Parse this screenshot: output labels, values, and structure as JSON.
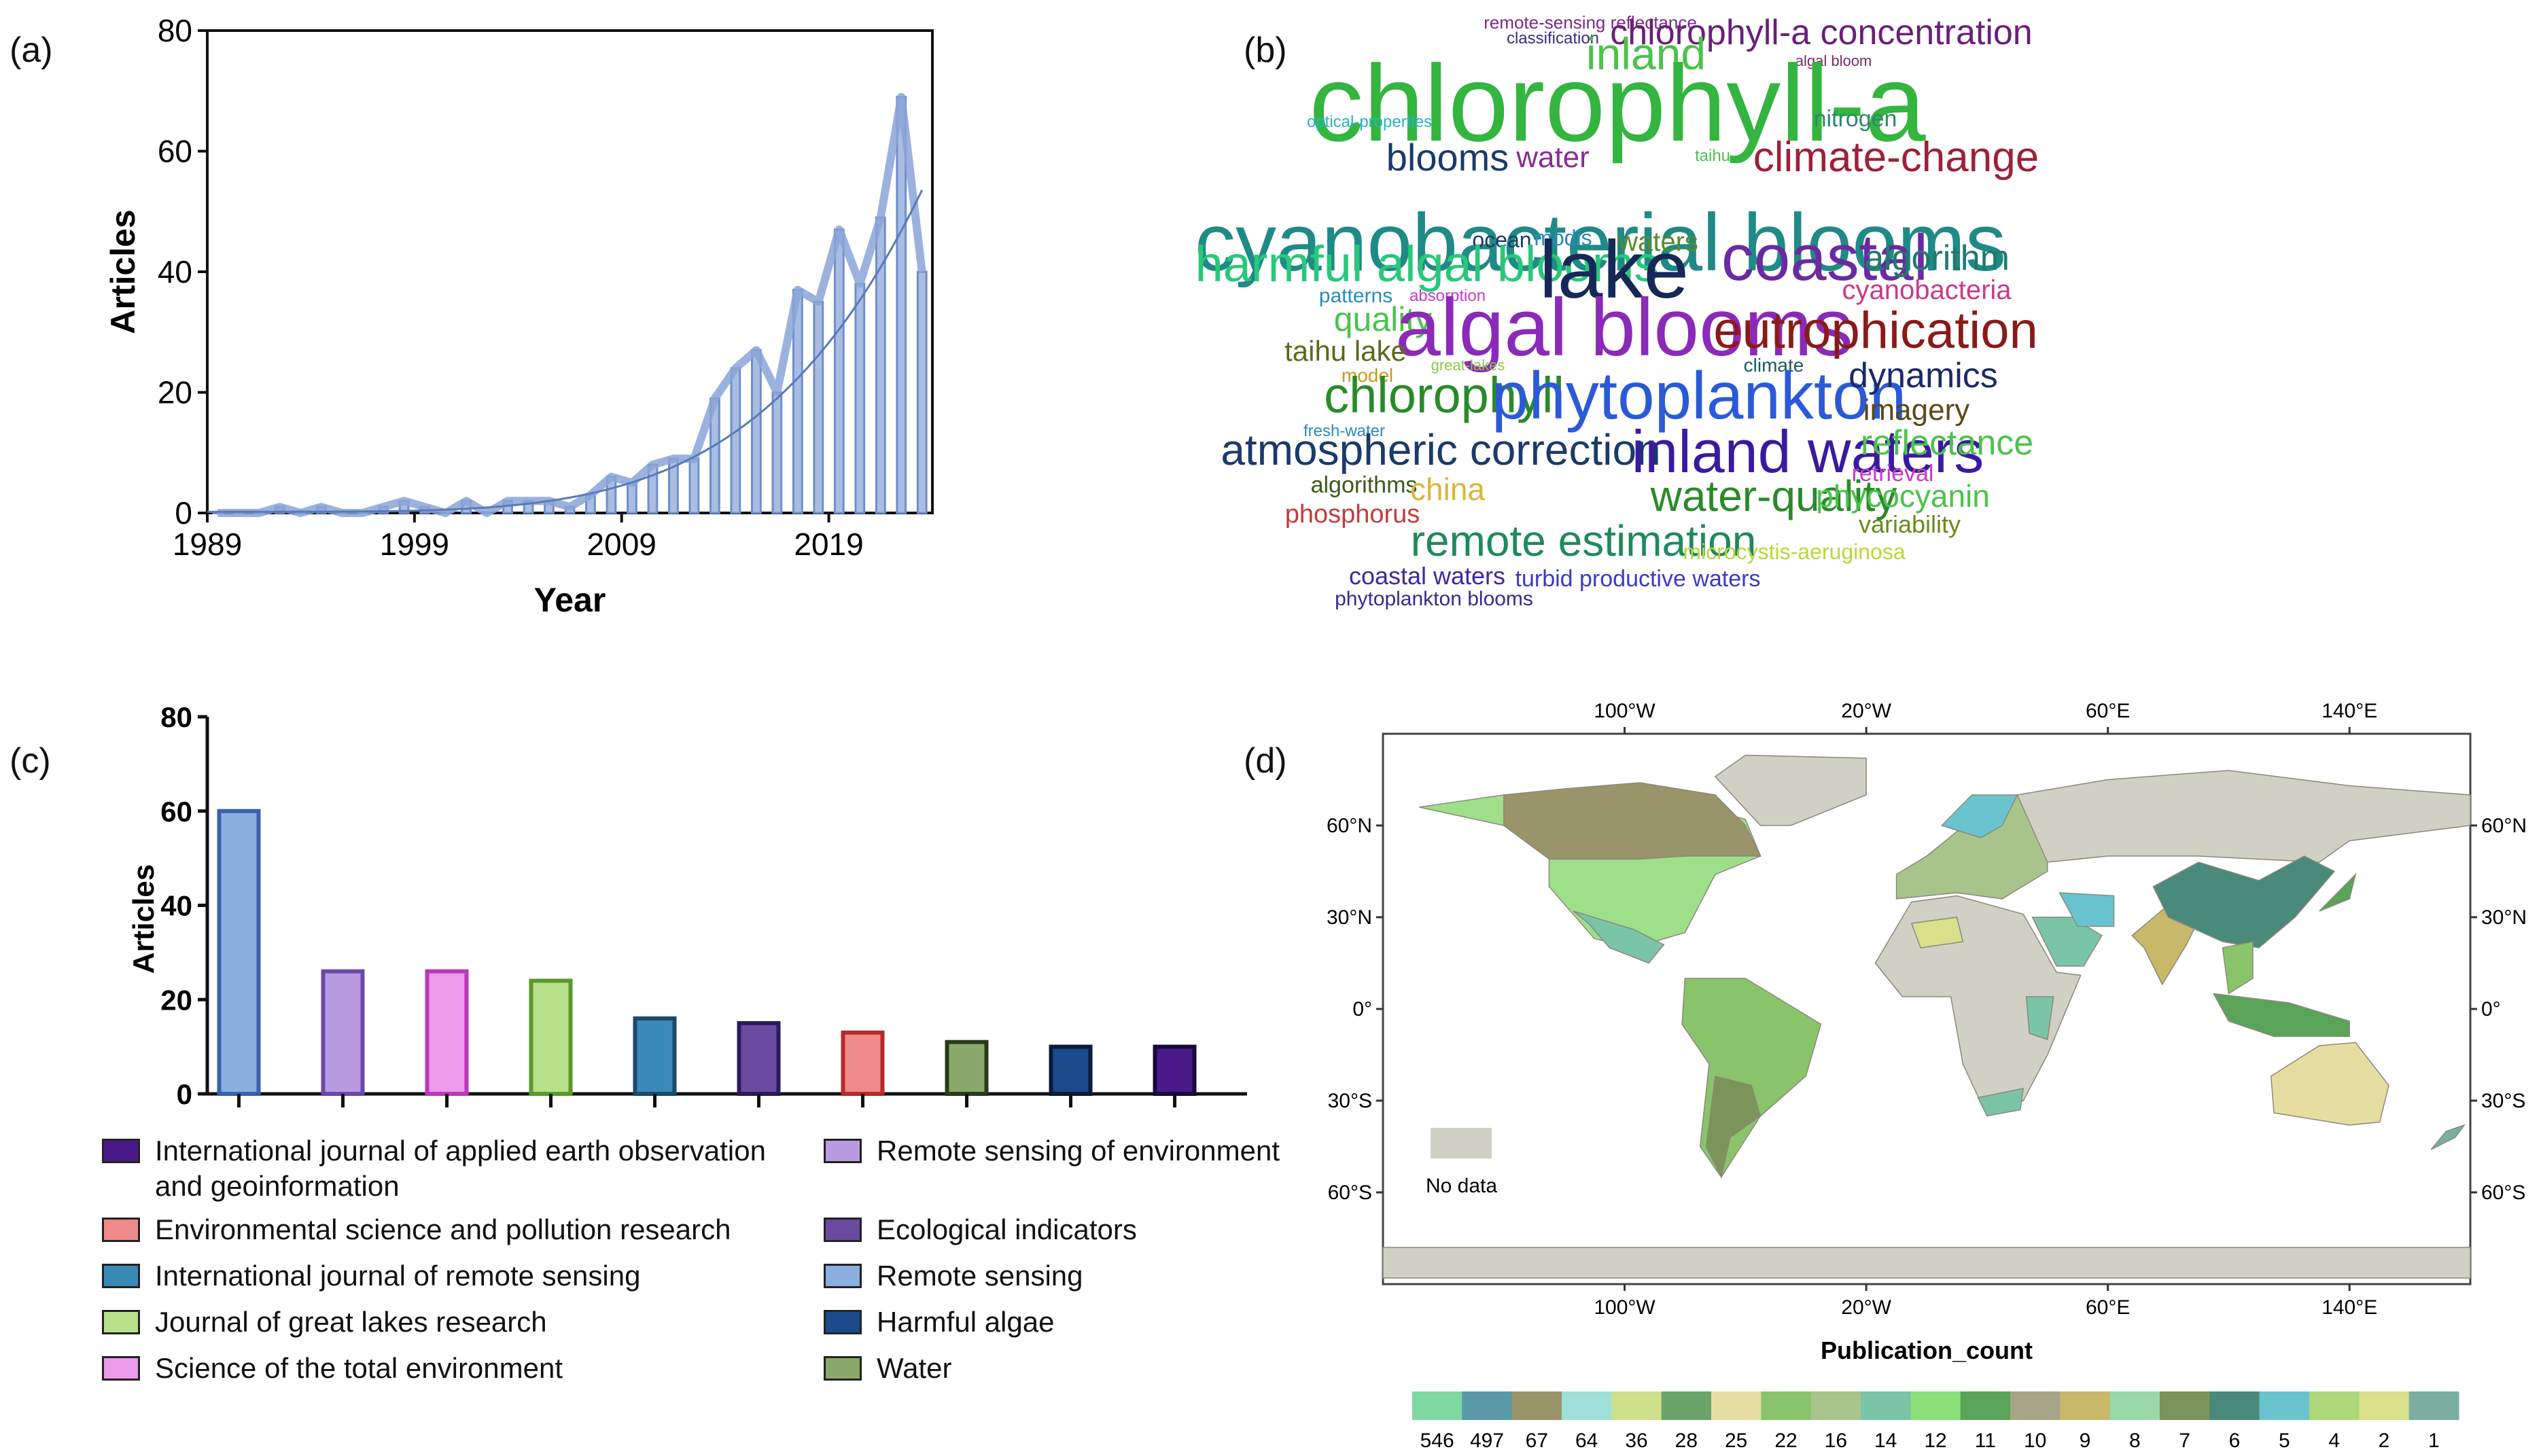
{
  "panels": {
    "a": "(a)",
    "b": "(b)",
    "c": "(c)",
    "d": "(d)"
  },
  "chart_data": [
    {
      "type": "bar",
      "xlabel": "Year",
      "ylabel": "Articles",
      "x_ticks": [
        "1989",
        "1999",
        "2009",
        "2019"
      ],
      "y_ticks": [
        "0",
        "20",
        "40",
        "60",
        "80"
      ],
      "ylim": [
        0,
        80
      ],
      "xlim": [
        1989,
        2024
      ],
      "years": [
        1989,
        1990,
        1991,
        1992,
        1993,
        1994,
        1995,
        1996,
        1997,
        1998,
        1999,
        2000,
        2001,
        2002,
        2003,
        2004,
        2005,
        2006,
        2007,
        2008,
        2009,
        2010,
        2011,
        2012,
        2013,
        2014,
        2015,
        2016,
        2017,
        2018,
        2019,
        2020,
        2021,
        2022,
        2023
      ],
      "values": [
        0,
        0,
        0,
        1,
        0,
        1,
        0,
        0,
        1,
        2,
        1,
        0,
        2,
        0,
        2,
        2,
        2,
        1,
        3,
        6,
        5,
        8,
        9,
        9,
        19,
        24,
        27,
        20,
        37,
        35,
        47,
        38,
        49,
        69,
        40
      ],
      "trend": "exponential"
    },
    {
      "type": "wordcloud",
      "words": [
        {
          "text": "remote-sensing reflectance",
          "color": "#7b2a8a",
          "size": 26
        },
        {
          "text": "classification",
          "color": "#3a2a8a",
          "size": 24
        },
        {
          "text": "chlorophyll-a concentration",
          "color": "#6a1f7a",
          "size": 52
        },
        {
          "text": "inland",
          "color": "#4cc24c",
          "size": 66
        },
        {
          "text": "algal bloom",
          "color": "#7b2a6a",
          "size": 22
        },
        {
          "text": "chlorophyll-a",
          "color": "#33b53f",
          "size": 160
        },
        {
          "text": "optical-properties",
          "color": "#26b4c8",
          "size": 24
        },
        {
          "text": "nitrogen",
          "color": "#2a8a6a",
          "size": 34
        },
        {
          "text": "blooms",
          "color": "#1a3a6a",
          "size": 56
        },
        {
          "text": "water",
          "color": "#8a2a9a",
          "size": 44
        },
        {
          "text": "taihu",
          "color": "#4cc24c",
          "size": 24
        },
        {
          "text": "climate-change",
          "color": "#9e2038",
          "size": 62
        },
        {
          "text": "cyanobacterial blooms",
          "color": "#1f8a86",
          "size": 120
        },
        {
          "text": "ocean",
          "color": "#1a3a6a",
          "size": 32
        },
        {
          "text": "modis",
          "color": "#2a8abe",
          "size": 32
        },
        {
          "text": "waters",
          "color": "#5a8a2a",
          "size": 40
        },
        {
          "text": "harmful algal blooms",
          "color": "#27c87a",
          "size": 74
        },
        {
          "text": "lake",
          "color": "#162858",
          "size": 120
        },
        {
          "text": "coastal",
          "color": "#6a2aa0",
          "size": 96
        },
        {
          "text": "algorithm",
          "color": "#1f7a6e",
          "size": 52
        },
        {
          "text": "patterns",
          "color": "#2a8abe",
          "size": 30
        },
        {
          "text": "absorption",
          "color": "#c83ac8",
          "size": 24
        },
        {
          "text": "cyanobacteria",
          "color": "#c83a8a",
          "size": 40
        },
        {
          "text": "quality",
          "color": "#4cc24c",
          "size": 50
        },
        {
          "text": "algal blooms",
          "color": "#8a2ab8",
          "size": 120
        },
        {
          "text": "eutrophication",
          "color": "#8a1a1a",
          "size": 76
        },
        {
          "text": "taihu lake",
          "color": "#5a6a1a",
          "size": 42
        },
        {
          "text": "model",
          "color": "#c89a1a",
          "size": 28
        },
        {
          "text": "great-lakes",
          "color": "#8ac84a",
          "size": 22
        },
        {
          "text": "climate",
          "color": "#1a5a5a",
          "size": 28
        },
        {
          "text": "chlorophyll",
          "color": "#2a8a2a",
          "size": 74
        },
        {
          "text": "phytoplankton",
          "color": "#2a5ad8",
          "size": 98
        },
        {
          "text": "dynamics",
          "color": "#1a2a6a",
          "size": 52
        },
        {
          "text": "imagery",
          "color": "#5a4a1a",
          "size": 44
        },
        {
          "text": "fresh-water",
          "color": "#2a8abe",
          "size": 24
        },
        {
          "text": "atmospheric correction",
          "color": "#1a3a6a",
          "size": 64
        },
        {
          "text": "inland waters",
          "color": "#3a1aa0",
          "size": 88
        },
        {
          "text": "reflectance",
          "color": "#4cc24c",
          "size": 52
        },
        {
          "text": "retrieval",
          "color": "#c83ac8",
          "size": 34
        },
        {
          "text": "algorithms",
          "color": "#3a5a1a",
          "size": 34
        },
        {
          "text": "china",
          "color": "#d8b83a",
          "size": 46
        },
        {
          "text": "water-quality",
          "color": "#2a8a2a",
          "size": 64
        },
        {
          "text": "phycocyanin",
          "color": "#4cc24c",
          "size": 46
        },
        {
          "text": "phosphorus",
          "color": "#c83a3a",
          "size": 38
        },
        {
          "text": "variability",
          "color": "#6a8a1a",
          "size": 36
        },
        {
          "text": "remote estimation",
          "color": "#1f8a5a",
          "size": 64
        },
        {
          "text": "microcystis-aeruginosa",
          "color": "#b8d83a",
          "size": 32
        },
        {
          "text": "coastal waters",
          "color": "#3a2aa0",
          "size": 36
        },
        {
          "text": "turbid productive waters",
          "color": "#3a3ac8",
          "size": 34
        },
        {
          "text": "phytoplankton blooms",
          "color": "#3a2a8a",
          "size": 30
        }
      ]
    },
    {
      "type": "bar",
      "ylabel": "Articles",
      "y_ticks": [
        "0",
        "20",
        "40",
        "60",
        "80"
      ],
      "ylim": [
        0,
        80
      ],
      "categories": [
        "Remote sensing",
        "Remote sensing of environment",
        "Science of the total environment",
        "Journal of great lakes research",
        "International journal of remote sensing",
        "Ecological indicators",
        "Environmental science and pollution research",
        "Water",
        "Harmful algae",
        "International journal of applied earth observation and geoinformation"
      ],
      "values": [
        60,
        26,
        26,
        24,
        16,
        15,
        13,
        11,
        10,
        10
      ],
      "colors": [
        {
          "fill": "#8aaede",
          "stroke": "#3a62a8"
        },
        {
          "fill": "#b89ae0",
          "stroke": "#6a4aa8"
        },
        {
          "fill": "#ec9aec",
          "stroke": "#b83ab8"
        },
        {
          "fill": "#b8e08a",
          "stroke": "#5a9a2a"
        },
        {
          "fill": "#3a8ab8",
          "stroke": "#1a4a6a"
        },
        {
          "fill": "#6a4aa0",
          "stroke": "#2a1a5a"
        },
        {
          "fill": "#ee8a8a",
          "stroke": "#b82a2a"
        },
        {
          "fill": "#8aa86a",
          "stroke": "#2a3a1a"
        },
        {
          "fill": "#1a4a8a",
          "stroke": "#0a1a3a"
        },
        {
          "fill": "#4a1a8a",
          "stroke": "#1a0a3a"
        }
      ],
      "legend": [
        {
          "label": "International journal of applied earth observation and geoinformation",
          "color": "#4a1a8a"
        },
        {
          "label": "Environmental science and pollution research",
          "color": "#ee8a8a"
        },
        {
          "label": "International journal of remote sensing",
          "color": "#3a8ab8"
        },
        {
          "label": "Journal of great lakes research",
          "color": "#b8e08a"
        },
        {
          "label": "Science of the total environment",
          "color": "#ec9aec"
        },
        {
          "label": "Remote sensing of environment",
          "color": "#b89ae0"
        },
        {
          "label": "Ecological indicators",
          "color": "#6a4aa0"
        },
        {
          "label": "Remote sensing",
          "color": "#8aaede"
        },
        {
          "label": "Harmful algae",
          "color": "#1a4a8a"
        },
        {
          "label": "Water",
          "color": "#8aa86a"
        }
      ]
    },
    {
      "type": "map",
      "top_ticks": [
        "100°W",
        "20°W",
        "60°E",
        "140°E"
      ],
      "bottom_ticks": [
        "100°W",
        "20°W",
        "60°E",
        "140°E"
      ],
      "lat_ticks": [
        "60°N",
        "30°N",
        "0°",
        "30°S",
        "60°S"
      ],
      "no_data_label": "No data",
      "no_data_color": "#d0d0c4",
      "legend_title": "Publication_count",
      "bins": [
        {
          "label": "546",
          "color": "#7fd8a0"
        },
        {
          "label": "497",
          "color": "#5a9aa8"
        },
        {
          "label": "67",
          "color": "#9a946a"
        },
        {
          "label": "64",
          "color": "#9ee0d8"
        },
        {
          "label": "36",
          "color": "#cee08a"
        },
        {
          "label": "28",
          "color": "#6aa46a"
        },
        {
          "label": "25",
          "color": "#e6dea0"
        },
        {
          "label": "22",
          "color": "#8ac46a"
        },
        {
          "label": "16",
          "color": "#a8c48a"
        },
        {
          "label": "14",
          "color": "#7ac4a8"
        },
        {
          "label": "12",
          "color": "#8ae07a"
        },
        {
          "label": "11",
          "color": "#5aa45a"
        },
        {
          "label": "10",
          "color": "#a8a488"
        },
        {
          "label": "9",
          "color": "#c8b86a"
        },
        {
          "label": "8",
          "color": "#9ad8a8"
        },
        {
          "label": "7",
          "color": "#7a945a"
        },
        {
          "label": "6",
          "color": "#4a8a7a"
        },
        {
          "label": "5",
          "color": "#6ac4d0"
        },
        {
          "label": "4",
          "color": "#aed87a"
        },
        {
          "label": "2",
          "color": "#d8e08a"
        },
        {
          "label": "1",
          "color": "#7aaea0"
        }
      ]
    }
  ]
}
